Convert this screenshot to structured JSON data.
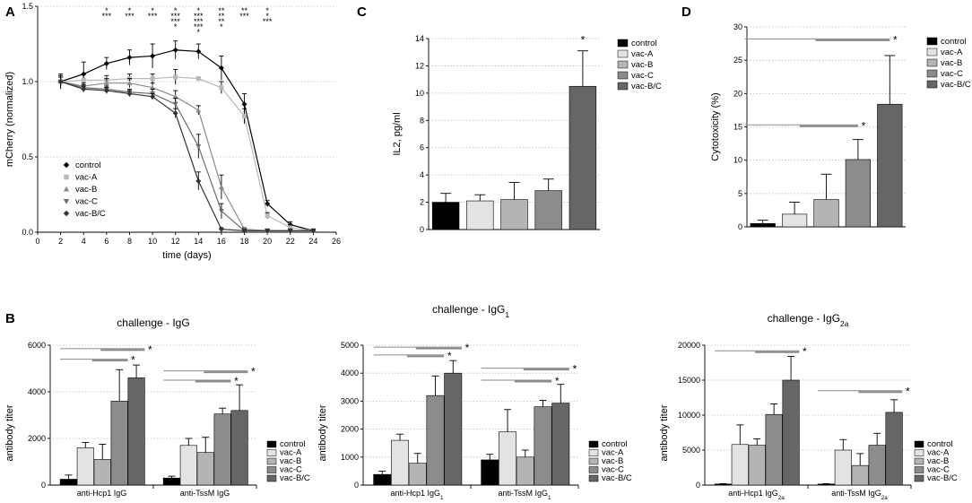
{
  "panel_labels": {
    "a": "A",
    "b": "B",
    "c": "C",
    "d": "D"
  },
  "chart_data": [
    {
      "id": "A",
      "type": "line",
      "title": "",
      "xlabel": "time (days)",
      "ylabel": "mCherry (normalized)",
      "xlim": [
        0,
        26
      ],
      "ylim": [
        0,
        1.5
      ],
      "xticks": [
        "0",
        "2",
        "4",
        "6",
        "8",
        "10",
        "12",
        "14",
        "16",
        "18",
        "20",
        "22",
        "24",
        "26"
      ],
      "yticks": [
        "0.0",
        "0.5",
        "1.0",
        "1.5"
      ],
      "grid": true,
      "legend_position": "lower-left",
      "series": [
        {
          "name": "control",
          "color": "#000000",
          "marker": "diamond",
          "x": [
            2,
            4,
            6,
            8,
            10,
            12,
            14,
            16,
            18,
            20,
            22,
            24
          ],
          "y": [
            1.0,
            1.05,
            1.12,
            1.16,
            1.17,
            1.21,
            1.2,
            1.09,
            0.85,
            0.19,
            0.05,
            0.01
          ],
          "err": [
            0.05,
            0.08,
            0.04,
            0.05,
            0.08,
            0.06,
            0.05,
            0.08,
            0.07,
            0.02,
            0.02,
            0.01
          ]
        },
        {
          "name": "vac-A",
          "color": "#b8b8b8",
          "marker": "square",
          "x": [
            2,
            4,
            6,
            8,
            10,
            12,
            14,
            16,
            18,
            20,
            22,
            24
          ],
          "y": [
            1.0,
            1.01,
            1.01,
            1.02,
            1.02,
            1.03,
            1.02,
            0.96,
            0.77,
            0.11,
            0.03,
            0.01
          ],
          "err": [
            0.04,
            0.04,
            0.03,
            0.03,
            0.03,
            0.05,
            0.01,
            0.04,
            0.05,
            0.02,
            0.01,
            0.01
          ]
        },
        {
          "name": "vac-B",
          "color": "#8c8c8c",
          "marker": "triangle",
          "x": [
            2,
            4,
            6,
            8,
            10,
            12,
            14,
            16,
            18,
            20,
            22,
            24
          ],
          "y": [
            1.0,
            0.97,
            0.99,
            0.99,
            0.96,
            0.9,
            0.81,
            0.3,
            0.02,
            0.01,
            0.01,
            0.01
          ],
          "err": [
            0.03,
            0.02,
            0.03,
            0.03,
            0.03,
            0.04,
            0.03,
            0.08,
            0.01,
            0.01,
            0.01,
            0.01
          ]
        },
        {
          "name": "vac-C",
          "color": "#6e6e6e",
          "marker": "triangle-down",
          "x": [
            2,
            4,
            6,
            8,
            10,
            12,
            14,
            16,
            18,
            20,
            22,
            24
          ],
          "y": [
            1.0,
            0.96,
            0.95,
            0.93,
            0.92,
            0.85,
            0.57,
            0.14,
            0.01,
            0.01,
            0.01,
            0.01
          ],
          "err": [
            0.03,
            0.02,
            0.02,
            0.02,
            0.03,
            0.04,
            0.08,
            0.05,
            0.01,
            0.01,
            0.01,
            0.01
          ]
        },
        {
          "name": "vac-B/C",
          "color": "#333333",
          "marker": "diamond",
          "x": [
            2,
            4,
            6,
            8,
            10,
            12,
            14,
            16,
            18,
            20,
            22,
            24
          ],
          "y": [
            1.0,
            0.95,
            0.94,
            0.92,
            0.9,
            0.79,
            0.34,
            0.02,
            0.01,
            0.01,
            0.01,
            0.01
          ],
          "err": [
            0.03,
            0.02,
            0.02,
            0.02,
            0.02,
            0.03,
            0.06,
            0.01,
            0.01,
            0.01,
            0.01,
            0.01
          ]
        }
      ],
      "significance_marks": [
        {
          "x": 6,
          "rows": [
            "*",
            "***"
          ]
        },
        {
          "x": 8,
          "rows": [
            "*",
            "***"
          ]
        },
        {
          "x": 10,
          "rows": [
            "*",
            "***"
          ]
        },
        {
          "x": 12,
          "rows": [
            "*",
            "***",
            "***",
            "*"
          ]
        },
        {
          "x": 14,
          "rows": [
            "*",
            "***",
            "***",
            "***",
            "*"
          ]
        },
        {
          "x": 16,
          "rows": [
            "**",
            "**",
            "**",
            "*"
          ]
        },
        {
          "x": 18,
          "rows": [
            "**",
            "***"
          ]
        },
        {
          "x": 20,
          "rows": [
            "*",
            "*",
            "***"
          ]
        }
      ]
    },
    {
      "id": "C",
      "type": "bar",
      "title": "",
      "xlabel": "",
      "ylabel": "IL2, pg/ml",
      "ylim": [
        0,
        14
      ],
      "yticks": [
        "0",
        "2",
        "4",
        "6",
        "8",
        "10",
        "12",
        "14"
      ],
      "grid": true,
      "legend_position": "top-right",
      "categories": [
        "control",
        "vac-A",
        "vac-B",
        "vac-C",
        "vac-B/C"
      ],
      "values": [
        2.0,
        2.1,
        2.2,
        2.85,
        10.5
      ],
      "errors": [
        0.65,
        0.45,
        1.25,
        0.85,
        2.6
      ],
      "colors": [
        "#000000",
        "#e3e3e3",
        "#b4b4b4",
        "#8c8c8c",
        "#666666"
      ],
      "significance": [
        {
          "type": "bar-star",
          "index": 4,
          "label": "*"
        }
      ]
    },
    {
      "id": "D",
      "type": "bar",
      "title": "",
      "xlabel": "",
      "ylabel": "Cytotoxicity (%)",
      "ylim": [
        0,
        30
      ],
      "yticks": [
        "0",
        "5",
        "10",
        "15",
        "20",
        "25",
        "30"
      ],
      "grid": true,
      "legend_position": "top-right",
      "categories": [
        "control",
        "vac-A",
        "vac-B",
        "vac-C",
        "vac-B/C"
      ],
      "values": [
        0.5,
        1.9,
        4.1,
        10.1,
        18.4
      ],
      "errors": [
        0.5,
        1.8,
        3.8,
        3.0,
        7.3
      ],
      "colors": [
        "#000000",
        "#e3e3e3",
        "#b4b4b4",
        "#8c8c8c",
        "#666666"
      ],
      "significance": [
        {
          "type": "bracket",
          "level": 15.3,
          "from": 0,
          "to": 3,
          "label": "*"
        },
        {
          "type": "bracket",
          "level": 28.2,
          "from": 0,
          "to": 4,
          "label": "*"
        }
      ]
    },
    {
      "id": "B1",
      "type": "bar",
      "title": "challenge - IgG",
      "title_subscript": "",
      "xlabel": "",
      "ylabel": "antibody titer",
      "ylim": [
        0,
        6000
      ],
      "yticks": [
        "0",
        "2000",
        "4000",
        "6000"
      ],
      "grid": true,
      "legend_position": "bottom-right",
      "legend": [
        "control",
        "vac-A",
        "vac-B",
        "vac-C",
        "vac-B/C"
      ],
      "colors": [
        "#000000",
        "#e3e3e3",
        "#b4b4b4",
        "#8c8c8c",
        "#666666"
      ],
      "groups": [
        {
          "label": "anti-Hcp1 IgG",
          "label_subscript": "",
          "values": [
            250,
            1600,
            1100,
            3600,
            4600
          ],
          "errors": [
            180,
            230,
            650,
            1350,
            550
          ]
        },
        {
          "label": "anti-TssM IgG",
          "label_subscript": "",
          "values": [
            300,
            1700,
            1400,
            3050,
            3200
          ],
          "errors": [
            80,
            300,
            650,
            250,
            1100
          ]
        }
      ],
      "significance": [
        {
          "group": 0,
          "from": 0,
          "to": 3,
          "level": 5400,
          "label": "*"
        },
        {
          "group": 0,
          "from": 0,
          "to": 4,
          "level": 5850,
          "label": "*"
        },
        {
          "group": 1,
          "from": 0,
          "to": 3,
          "level": 4500,
          "label": "*"
        },
        {
          "group": 1,
          "from": 0,
          "to": 4,
          "level": 4900,
          "label": "*"
        }
      ]
    },
    {
      "id": "B2",
      "type": "bar",
      "title": "challenge - IgG",
      "title_subscript": "1",
      "xlabel": "",
      "ylabel": "antibody titer",
      "ylim": [
        0,
        5000
      ],
      "yticks": [
        "0",
        "1000",
        "2000",
        "3000",
        "4000",
        "5000"
      ],
      "grid": true,
      "legend_position": "bottom-right",
      "legend": [
        "control",
        "vac-A",
        "vac-B",
        "vac-C",
        "vac-B/C"
      ],
      "colors": [
        "#000000",
        "#e3e3e3",
        "#b4b4b4",
        "#8c8c8c",
        "#666666"
      ],
      "groups": [
        {
          "label": "anti-Hcp1 IgG",
          "label_subscript": "1",
          "values": [
            380,
            1600,
            780,
            3200,
            4000
          ],
          "errors": [
            120,
            220,
            350,
            700,
            450
          ]
        },
        {
          "label": "anti-TssM IgG",
          "label_subscript": "1",
          "values": [
            900,
            1900,
            1000,
            2800,
            2930
          ],
          "errors": [
            200,
            800,
            250,
            230,
            670
          ]
        }
      ],
      "significance": [
        {
          "group": 0,
          "from": 0,
          "to": 3,
          "level": 4650,
          "label": "*"
        },
        {
          "group": 0,
          "from": 0,
          "to": 4,
          "level": 4930,
          "label": "*"
        },
        {
          "group": 1,
          "from": 0,
          "to": 3,
          "level": 3750,
          "label": "*"
        },
        {
          "group": 1,
          "from": 0,
          "to": 4,
          "level": 4180,
          "label": "*"
        }
      ]
    },
    {
      "id": "B3",
      "type": "bar",
      "title": "challenge - IgG",
      "title_subscript": "2a",
      "xlabel": "",
      "ylabel": "antibody titer",
      "ylim": [
        0,
        20000
      ],
      "yticks": [
        "0",
        "5000",
        "10000",
        "15000",
        "20000"
      ],
      "grid": true,
      "legend_position": "bottom-right",
      "legend": [
        "control",
        "vac-A",
        "vac-B",
        "vac-C",
        "vac-B/C"
      ],
      "colors": [
        "#000000",
        "#e3e3e3",
        "#b4b4b4",
        "#8c8c8c",
        "#666666"
      ],
      "groups": [
        {
          "label": "anti-Hcp1 IgG",
          "label_subscript": "2a",
          "values": [
            150,
            5800,
            5700,
            10100,
            15000
          ],
          "errors": [
            50,
            2800,
            900,
            1500,
            3400
          ]
        },
        {
          "label": "anti-TssM IgG",
          "label_subscript": "2a",
          "values": [
            150,
            5000,
            2800,
            5700,
            10400
          ],
          "errors": [
            50,
            1500,
            1700,
            1700,
            1800
          ]
        }
      ],
      "significance": [
        {
          "group": 0,
          "from": 0,
          "to": 4,
          "level": 19200,
          "label": "*"
        },
        {
          "group": 1,
          "from": 0,
          "to": 4,
          "level": 13500,
          "label": "*"
        }
      ]
    }
  ]
}
